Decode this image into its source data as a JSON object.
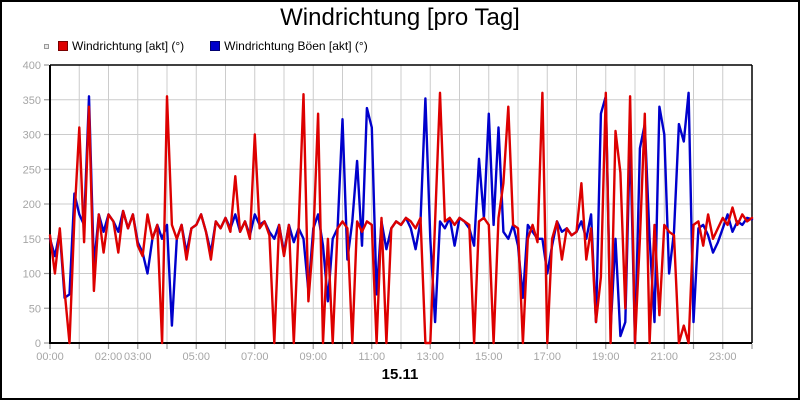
{
  "window": {
    "title": "Windrichtung [pro Tag]"
  },
  "legend": {
    "items": [
      {
        "label": "Windrichtung [akt] (°)",
        "color": "#dd0000"
      },
      {
        "label": "Windrichtung Böen [akt] (°)",
        "color": "#0000cc"
      }
    ]
  },
  "x_axis": {
    "labeled_hours": [
      0,
      2,
      3,
      5,
      7,
      9,
      11,
      13,
      15,
      17,
      19,
      21,
      23
    ],
    "label_suffix": ":00",
    "date_label": "15.11"
  },
  "y_axis": {
    "min": 0,
    "max": 400,
    "step": 50
  },
  "colors": {
    "grid": "#cccccc",
    "axis": "#000000",
    "tick": "#999999",
    "tick_label": "#a6a6a6",
    "series_akt": "#dd0000",
    "series_boeen": "#0000cc"
  },
  "chart_data": {
    "type": "line",
    "title": "Windrichtung [pro Tag]",
    "xlabel": "15.11",
    "ylabel": "",
    "x_unit": "hours",
    "x_range": [
      0,
      24
    ],
    "ylim": [
      0,
      400
    ],
    "grid": true,
    "legend_position": "top-left",
    "sample_step_hours": 0.1667,
    "series": [
      {
        "name": "Windrichtung [akt] (°)",
        "color": "#dd0000",
        "values": [
          155,
          100,
          165,
          75,
          0,
          180,
          310,
          145,
          340,
          75,
          185,
          130,
          185,
          175,
          130,
          190,
          165,
          185,
          140,
          125,
          185,
          150,
          170,
          0,
          355,
          170,
          150,
          170,
          120,
          165,
          170,
          185,
          160,
          120,
          175,
          165,
          180,
          160,
          240,
          160,
          175,
          150,
          300,
          165,
          175,
          155,
          0,
          170,
          125,
          170,
          0,
          165,
          358,
          60,
          150,
          330,
          0,
          150,
          0,
          165,
          175,
          165,
          0,
          175,
          160,
          175,
          170,
          0,
          180,
          0,
          165,
          175,
          170,
          180,
          175,
          165,
          180,
          0,
          0,
          175,
          360,
          175,
          180,
          170,
          180,
          175,
          170,
          0,
          175,
          180,
          170,
          0,
          180,
          230,
          340,
          170,
          165,
          0,
          150,
          170,
          145,
          360,
          0,
          150,
          175,
          120,
          165,
          155,
          160,
          230,
          120,
          165,
          30,
          95,
          360,
          0,
          305,
          245,
          50,
          355,
          0,
          150,
          330,
          0,
          170,
          40,
          170,
          160,
          155,
          0,
          25,
          0,
          170,
          175,
          140,
          185,
          150,
          165,
          180,
          170,
          195,
          170,
          185,
          175,
          180
        ]
      },
      {
        "name": "Windrichtung Böen [akt] (°)",
        "color": "#0000cc",
        "values": [
          150,
          125,
          160,
          65,
          70,
          215,
          185,
          170,
          355,
          110,
          185,
          160,
          185,
          175,
          160,
          190,
          165,
          185,
          145,
          130,
          100,
          150,
          170,
          150,
          170,
          25,
          150,
          170,
          130,
          165,
          170,
          185,
          160,
          130,
          175,
          165,
          180,
          165,
          185,
          160,
          175,
          155,
          185,
          170,
          175,
          160,
          150,
          170,
          130,
          170,
          145,
          165,
          150,
          75,
          165,
          185,
          140,
          60,
          150,
          165,
          322,
          120,
          175,
          262,
          140,
          338,
          310,
          70,
          175,
          135,
          165,
          175,
          170,
          180,
          165,
          135,
          175,
          352,
          150,
          30,
          175,
          165,
          180,
          140,
          180,
          175,
          165,
          140,
          265,
          180,
          330,
          170,
          310,
          160,
          150,
          170,
          140,
          65,
          170,
          160,
          150,
          150,
          100,
          140,
          175,
          160,
          165,
          155,
          160,
          175,
          150,
          185,
          30,
          330,
          355,
          20,
          150,
          10,
          30,
          300,
          0,
          280,
          315,
          150,
          30,
          340,
          300,
          100,
          160,
          315,
          290,
          360,
          30,
          165,
          170,
          155,
          130,
          145,
          165,
          185,
          160,
          175,
          170,
          180,
          178
        ]
      }
    ]
  }
}
